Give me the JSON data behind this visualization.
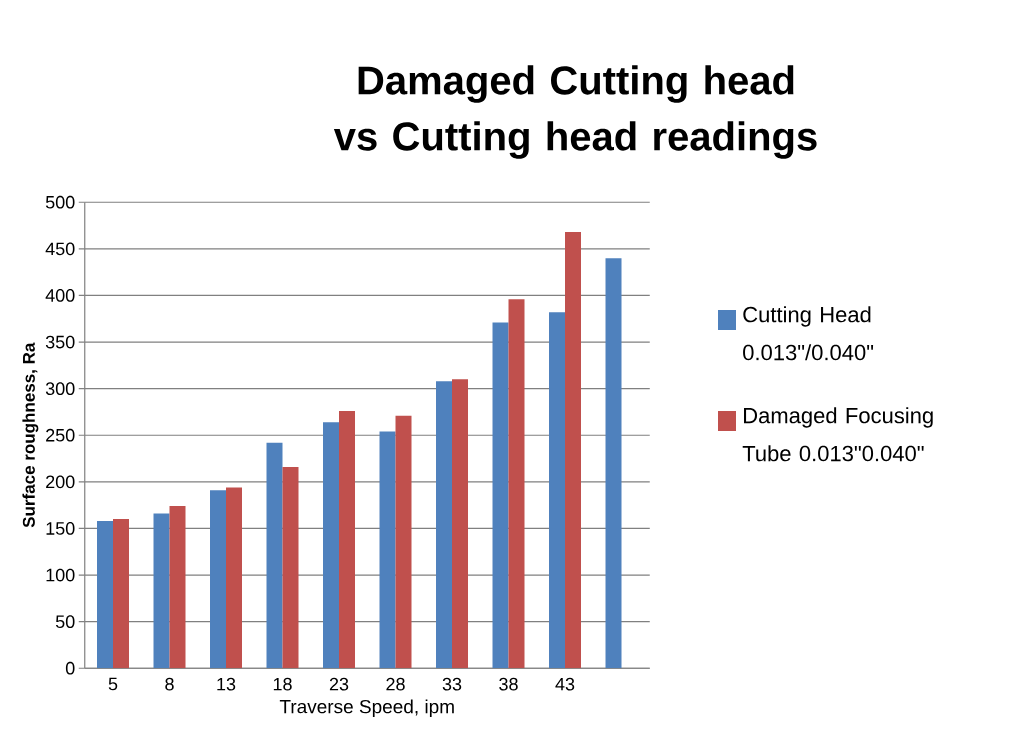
{
  "chart_data": {
    "type": "bar",
    "title": "Damaged Cutting head vs Cutting head readings",
    "xlabel": "Traverse Speed, ipm",
    "ylabel": "Surface roughness, Ra",
    "categories": [
      "5",
      "8",
      "13",
      "18",
      "23",
      "28",
      "33",
      "38",
      "43",
      null
    ],
    "series": [
      {
        "name": "Cutting Head 0.013\"/0.040\"",
        "color": "#4f81bd",
        "values": [
          158,
          166,
          191,
          242,
          264,
          254,
          308,
          371,
          382,
          440
        ]
      },
      {
        "name": "Damaged Focusing Tube 0.013\"0.040\"",
        "color": "#c0504d",
        "values": [
          160,
          174,
          194,
          216,
          276,
          271,
          310,
          396,
          468,
          null
        ]
      }
    ],
    "ylim": [
      0,
      500
    ],
    "yticks": [
      0,
      50,
      100,
      150,
      200,
      250,
      300,
      350,
      400,
      450,
      500
    ],
    "grid": "y",
    "legend": "right"
  }
}
